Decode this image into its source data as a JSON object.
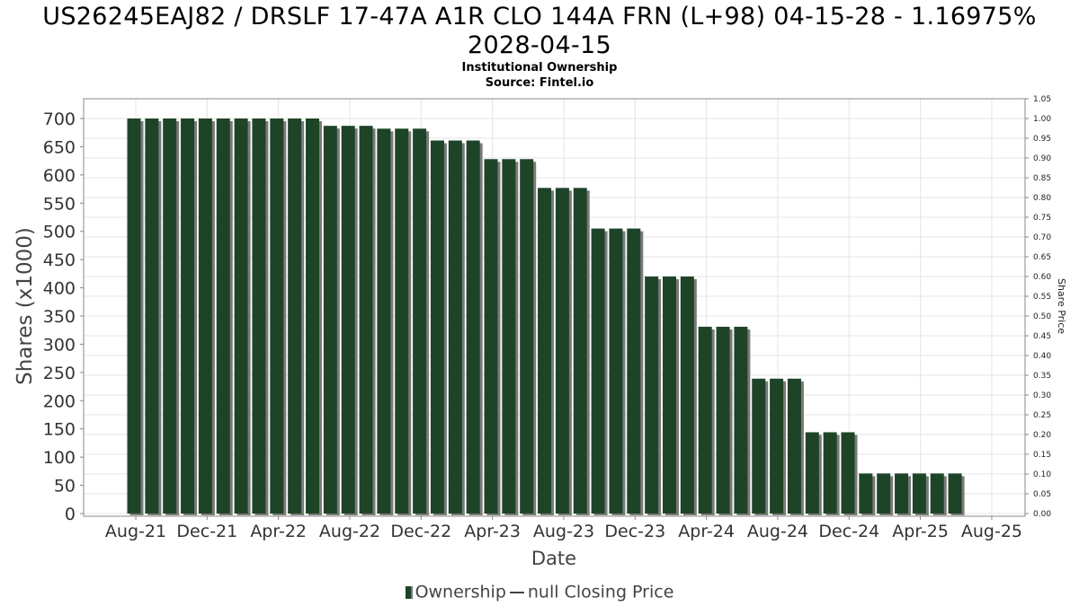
{
  "title_line1": "US26245EAJ82 / DRSLF 17-47A A1R CLO 144A FRN (L+98) 04-15-28 - 1.16975%",
  "title_line2": "2028-04-15",
  "subtitle": "Institutional Ownership",
  "source": "Source: Fintel.io",
  "legend": {
    "bar_label": "Ownership",
    "line_label": "null Closing Price"
  },
  "colors": {
    "bar": "#1e4428",
    "bar_shadow": "#7a7a7a",
    "grid": "#e4e4e4",
    "axis": "#888888"
  },
  "chart_data": {
    "type": "bar",
    "xlabel": "Date",
    "ylabel": "Shares (x1000)",
    "y2label": "Share Price",
    "ylim": [
      0,
      700
    ],
    "yticks": [
      0,
      50,
      100,
      150,
      200,
      250,
      300,
      350,
      400,
      450,
      500,
      550,
      600,
      650,
      700
    ],
    "y2lim": [
      0,
      1.05
    ],
    "y2ticks": [
      "0.00",
      "0.05",
      "0.10",
      "0.15",
      "0.20",
      "0.25",
      "0.30",
      "0.35",
      "0.40",
      "0.45",
      "0.50",
      "0.55",
      "0.60",
      "0.65",
      "0.70",
      "0.75",
      "0.80",
      "0.85",
      "0.90",
      "0.95",
      "1.00",
      "1.05"
    ],
    "xticks": [
      "Aug-21",
      "Dec-21",
      "Apr-22",
      "Aug-22",
      "Dec-22",
      "Apr-23",
      "Aug-23",
      "Dec-23",
      "Apr-24",
      "Aug-24",
      "Dec-24",
      "Apr-25",
      "Aug-25"
    ],
    "grid": true,
    "legend_position": "bottom",
    "series": [
      {
        "name": "Ownership",
        "values": [
          700,
          700,
          700,
          700,
          700,
          700,
          700,
          700,
          700,
          700,
          700,
          687,
          687,
          687,
          682,
          682,
          682,
          661,
          661,
          661,
          628,
          628,
          628,
          577,
          577,
          577,
          505,
          505,
          505,
          420,
          420,
          420,
          331,
          331,
          331,
          239,
          239,
          239,
          144,
          144,
          144,
          71,
          71,
          71,
          71,
          71,
          71
        ]
      }
    ]
  }
}
